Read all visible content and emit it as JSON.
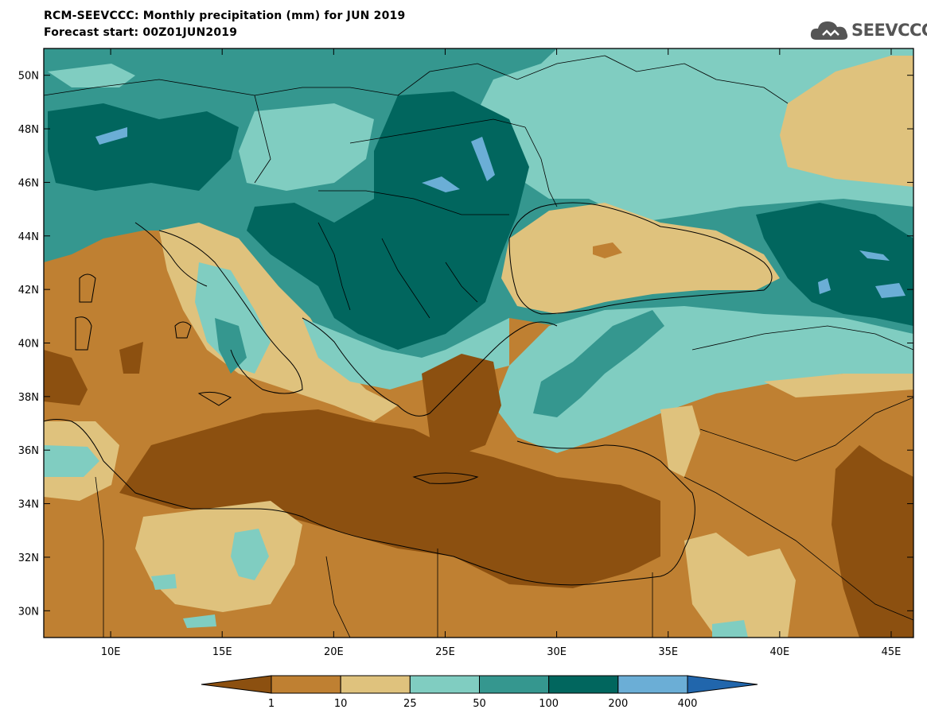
{
  "header": {
    "title": "RCM-SEEVCCC: Monthly precipitation (mm) for JUN 2019",
    "subtitle": "Forecast start: 00Z01JUN2019"
  },
  "logo": {
    "text": "SEEVCCC",
    "icon": "cloud-icon"
  },
  "map": {
    "lon_range": [
      7,
      46
    ],
    "lat_range": [
      29,
      51
    ],
    "lon_ticks": [
      {
        "value": 10,
        "label": "10E"
      },
      {
        "value": 15,
        "label": "15E"
      },
      {
        "value": 20,
        "label": "20E"
      },
      {
        "value": 25,
        "label": "25E"
      },
      {
        "value": 30,
        "label": "30E"
      },
      {
        "value": 35,
        "label": "35E"
      },
      {
        "value": 40,
        "label": "40E"
      },
      {
        "value": 45,
        "label": "45E"
      }
    ],
    "lat_ticks": [
      {
        "value": 50,
        "label": "50N"
      },
      {
        "value": 48,
        "label": "48N"
      },
      {
        "value": 46,
        "label": "46N"
      },
      {
        "value": 44,
        "label": "44N"
      },
      {
        "value": 42,
        "label": "42N"
      },
      {
        "value": 40,
        "label": "40N"
      },
      {
        "value": 38,
        "label": "38N"
      },
      {
        "value": 36,
        "label": "36N"
      },
      {
        "value": 34,
        "label": "34N"
      },
      {
        "value": 32,
        "label": "32N"
      },
      {
        "value": 30,
        "label": "30N"
      }
    ]
  },
  "colorbar": {
    "colors": [
      "#8c5010",
      "#bf8032",
      "#dfc27d",
      "#80cdc1",
      "#35978f",
      "#01665e",
      "#6baed6",
      "#2166ac"
    ],
    "labels": [
      "1",
      "10",
      "25",
      "50",
      "100",
      "200",
      "400"
    ]
  }
}
